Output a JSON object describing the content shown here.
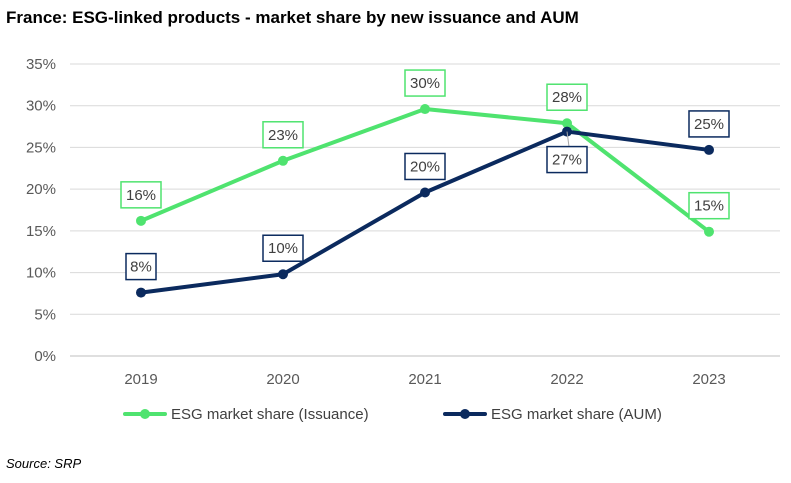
{
  "title": "France: ESG-linked products - market share by new issuance and AUM",
  "source": "Source: SRP",
  "chart_data": {
    "type": "line",
    "title": "France: ESG-linked products - market share by new issuance and AUM",
    "categories": [
      "2019",
      "2020",
      "2021",
      "2022",
      "2023"
    ],
    "ylim": [
      0,
      35
    ],
    "yticks": [
      "0%",
      "5%",
      "10%",
      "15%",
      "20%",
      "25%",
      "30%",
      "35%"
    ],
    "grid": true,
    "legend": "bottom",
    "series": [
      {
        "name": "ESG market share (Issuance)",
        "color": "#4fe36f",
        "values": [
          16.2,
          23.4,
          29.6,
          27.9,
          14.9
        ],
        "labels": [
          "16%",
          "23%",
          "30%",
          "28%",
          "15%"
        ]
      },
      {
        "name": "ESG market share (AUM)",
        "color": "#0b2a5e",
        "values": [
          7.6,
          9.8,
          19.6,
          26.9,
          24.7
        ],
        "labels": [
          "8%",
          "10%",
          "20%",
          "27%",
          "25%"
        ]
      }
    ]
  }
}
